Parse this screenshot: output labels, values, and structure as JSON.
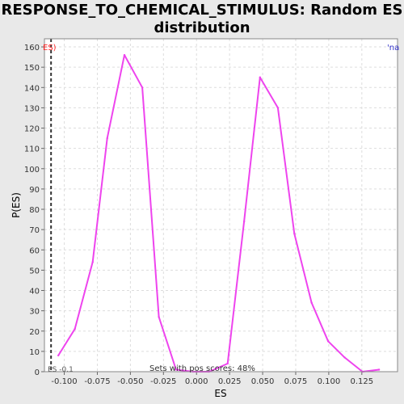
{
  "window": {
    "title_line1": "RESPONSE_TO_CHEMICAL_STIMULUS: Random ES",
    "title_line2": "distribution"
  },
  "chart_data": {
    "type": "line",
    "title": "RESPONSE_TO_CHEMICAL_STIMULUS: Random ES distribution",
    "xlabel": "ES",
    "ylabel": "P(ES)",
    "xlim": [
      -0.115,
      0.152
    ],
    "ylim": [
      0,
      164
    ],
    "xticks": [
      -0.1,
      -0.075,
      -0.05,
      -0.025,
      0.0,
      0.025,
      0.05,
      0.075,
      0.1,
      0.125
    ],
    "xtick_labels": [
      "-0.100",
      "-0.075",
      "-0.050",
      "-0.025",
      "0.000",
      "0.025",
      "0.050",
      "0.075",
      "0.100",
      "0.125"
    ],
    "yticks": [
      0,
      10,
      20,
      30,
      40,
      50,
      60,
      70,
      80,
      90,
      100,
      110,
      120,
      130,
      140,
      150,
      160
    ],
    "grid": true,
    "series": [
      {
        "color": "#ee44ee",
        "x": [
          -0.1045,
          -0.092,
          -0.0785,
          -0.0675,
          -0.0545,
          -0.041,
          -0.0285,
          -0.0155,
          -0.0025,
          0.0095,
          0.0235,
          0.036,
          0.048,
          0.0615,
          0.074,
          0.087,
          0.0995,
          0.112,
          0.1255,
          0.138
        ],
        "y": [
          8,
          21,
          54,
          115,
          156,
          140,
          27,
          1,
          0,
          0,
          4,
          74,
          145,
          130,
          68,
          34,
          15,
          7,
          0,
          1
        ]
      }
    ],
    "observed_es": -0.11,
    "observed_es_label": "ES -0.1",
    "observed_legend": "ES)",
    "legend_right_text": "'na",
    "annotation": "Sets with pos scores: 48%",
    "colors": {
      "line": "#ee44ee",
      "observed_line": "#333333",
      "observed_legend": "#ff2222",
      "legend_right": "#3333cc",
      "grid": "#dddddd"
    }
  }
}
